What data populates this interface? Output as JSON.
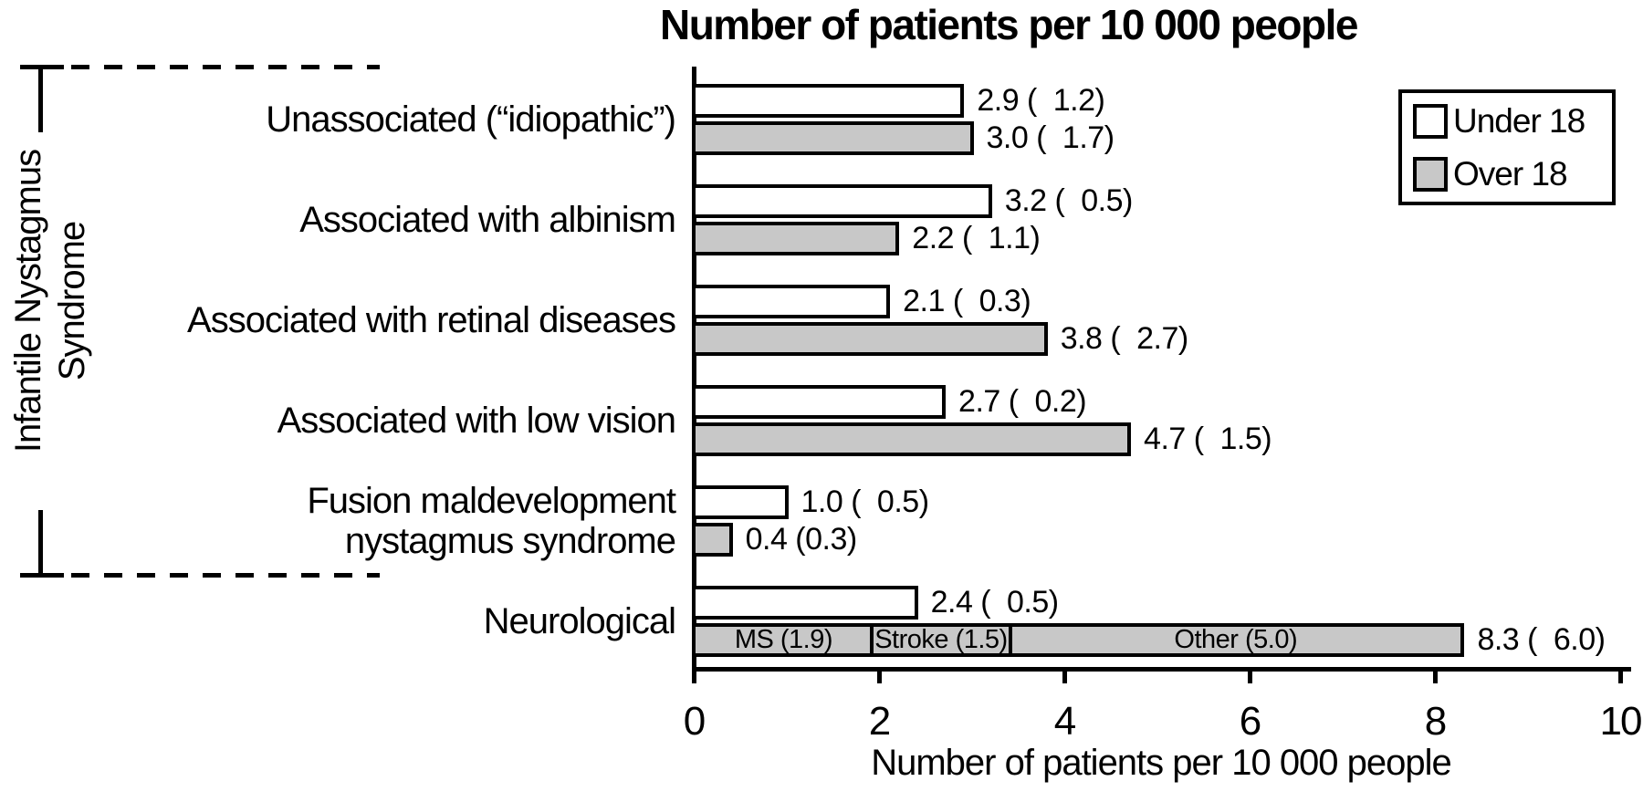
{
  "title": "Number of patients per 10 000 people",
  "axis_group_label": {
    "line1": "Infantile Nystagmus",
    "line2": "Syndrome"
  },
  "legend": {
    "items": [
      {
        "label": "Under 18",
        "color": "#ffffff"
      },
      {
        "label": "Over 18",
        "color": "#c8c8c8"
      }
    ]
  },
  "chart_data": {
    "type": "bar",
    "orientation": "horizontal",
    "title": "Number of patients per 10 000 people",
    "xlabel": "Number of patients per 10 000 people",
    "xlim": [
      0,
      10
    ],
    "xticks": [
      "0",
      "2",
      "4",
      "6",
      "8",
      "10"
    ],
    "grid": false,
    "legend_position": "top-right",
    "bar_colors": {
      "Under 18": "#ffffff",
      "Over 18": "#c8c8c8"
    },
    "categories": [
      {
        "lines": [
          "Unassociated (“idiopathic”)"
        ]
      },
      {
        "lines": [
          "Associated with albinism"
        ]
      },
      {
        "lines": [
          "Associated with retinal diseases"
        ]
      },
      {
        "lines": [
          "Associated with low vision"
        ]
      },
      {
        "lines": [
          "Fusion maldevelopment",
          "nystagmus syndrome"
        ]
      },
      {
        "lines": [
          "Neurological"
        ]
      }
    ],
    "series": [
      {
        "name": "Under 18",
        "values": [
          2.9,
          3.2,
          2.1,
          2.7,
          1.0,
          2.4
        ],
        "value_labels": [
          "2.9 (  1.2)",
          "3.2 (  0.5)",
          "2.1 (  0.3)",
          "2.7 (  0.2)",
          "1.0 (  0.5)",
          "2.4 (  0.5)"
        ]
      },
      {
        "name": "Over 18",
        "values": [
          3.0,
          2.2,
          3.8,
          4.7,
          0.4,
          8.3
        ],
        "value_labels": [
          "3.0 (  1.7)",
          "2.2 (  1.1)",
          "3.8 (  2.7)",
          "4.7 (  1.5)",
          "0.4 (0.3)",
          "8.3 (  6.0)"
        ]
      }
    ],
    "stacked_segments": {
      "category_index": 5,
      "series_name": "Over 18",
      "segments": [
        {
          "label": "MS (1.9)",
          "value": 1.9
        },
        {
          "label": "Stroke (1.5)",
          "value": 1.5
        },
        {
          "label": "Other (5.0)",
          "value": 5.0
        }
      ]
    },
    "group_bracket": {
      "label": "Infantile Nystagmus Syndrome",
      "covers_categories": [
        0,
        4
      ]
    }
  }
}
